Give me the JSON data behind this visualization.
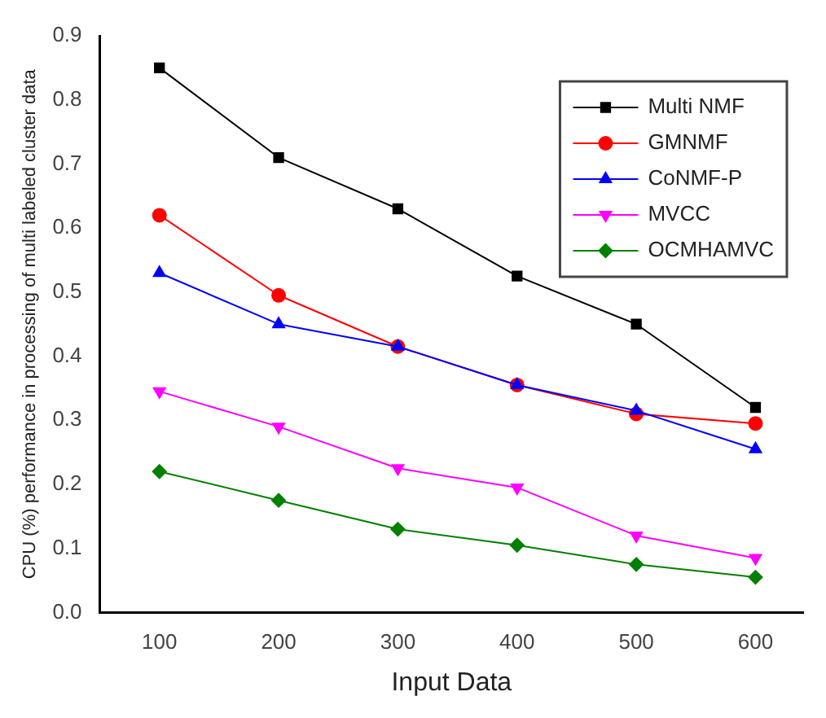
{
  "chart_data": {
    "type": "line",
    "xlabel": "Input Data",
    "ylabel": "CPU (%) performance in processing of multi labeled cluster data",
    "x": [
      100,
      200,
      300,
      400,
      500,
      600
    ],
    "xlim": [
      50,
      640
    ],
    "xticks": [
      100,
      200,
      300,
      400,
      500,
      600
    ],
    "ylim": [
      0,
      0.9
    ],
    "yticks": [
      {
        "value": 0,
        "label": "0.0"
      },
      0.1,
      0.2,
      0.3,
      0.4,
      0.5,
      0.6,
      0.7,
      0.8,
      0.9
    ],
    "grid": false,
    "legend": "top right",
    "line_style": "solid",
    "series": [
      {
        "name": "Multi NMF",
        "color": "#000000",
        "marker": "square",
        "values": [
          0.85,
          0.71,
          0.63,
          0.525,
          0.45,
          0.32
        ]
      },
      {
        "name": "GMNMF",
        "color": "#ff0000",
        "marker": "circle",
        "values": [
          0.62,
          0.495,
          0.415,
          0.355,
          0.31,
          0.295
        ]
      },
      {
        "name": "CoNMF-P",
        "color": "#0000ff",
        "marker": "triangle",
        "values": [
          0.53,
          0.45,
          0.415,
          0.355,
          0.315,
          0.255
        ]
      },
      {
        "name": "MVCC",
        "color": "#ff00ff",
        "marker": "triangle-down",
        "values": [
          0.345,
          0.29,
          0.225,
          0.195,
          0.12,
          0.085
        ]
      },
      {
        "name": "OCMHAMVC",
        "color": "#008000",
        "marker": "diamond",
        "values": [
          0.22,
          0.175,
          0.13,
          0.105,
          0.075,
          0.055
        ]
      }
    ]
  }
}
